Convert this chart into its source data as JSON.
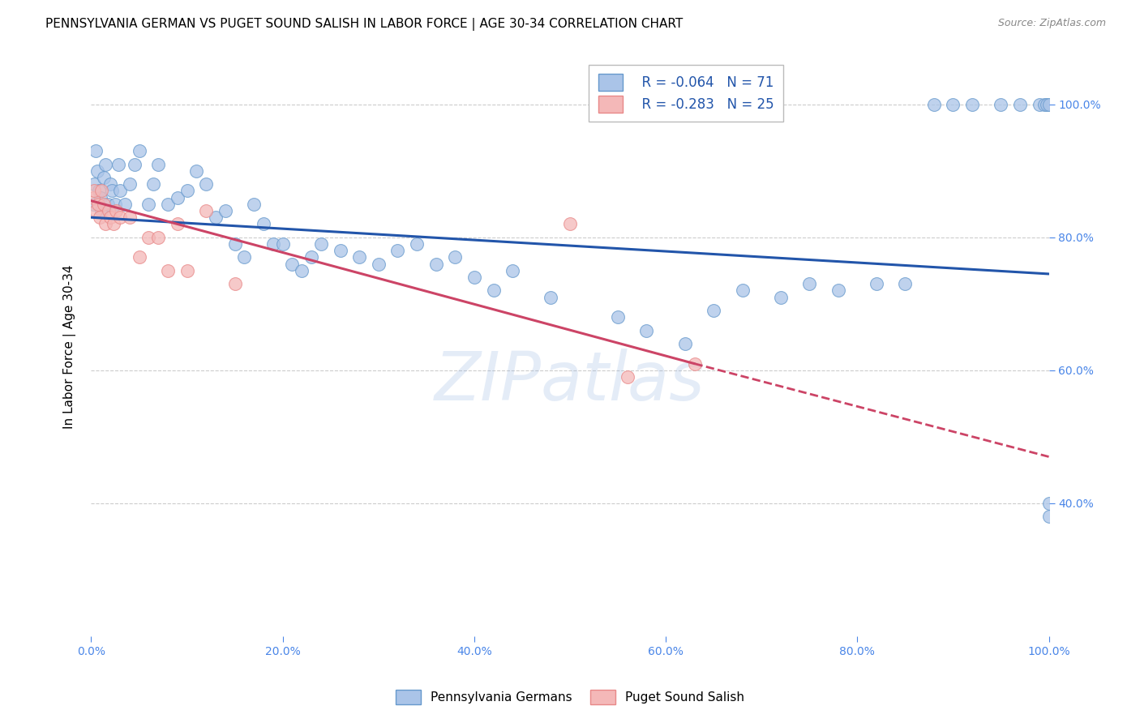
{
  "title": "PENNSYLVANIA GERMAN VS PUGET SOUND SALISH IN LABOR FORCE | AGE 30-34 CORRELATION CHART",
  "source": "Source: ZipAtlas.com",
  "ylabel": "In Labor Force | Age 30-34",
  "x_tick_vals": [
    0,
    20,
    40,
    60,
    80,
    100
  ],
  "y_tick_vals": [
    40,
    60,
    80,
    100
  ],
  "xlim": [
    0,
    100
  ],
  "ylim": [
    20,
    107
  ],
  "legend_blue_label": "Pennsylvania Germans",
  "legend_pink_label": "Puget Sound Salish",
  "r_blue": "-0.064",
  "n_blue": "71",
  "r_pink": "-0.283",
  "n_pink": "25",
  "blue_scatter_x": [
    0.2,
    0.3,
    0.5,
    0.6,
    0.8,
    1.0,
    1.1,
    1.3,
    1.5,
    1.7,
    2.0,
    2.2,
    2.5,
    2.8,
    3.0,
    3.5,
    4.0,
    4.5,
    5.0,
    6.0,
    6.5,
    7.0,
    8.0,
    9.0,
    10.0,
    11.0,
    12.0,
    13.0,
    14.0,
    15.0,
    16.0,
    17.0,
    18.0,
    19.0,
    20.0,
    21.0,
    22.0,
    23.0,
    24.0,
    26.0,
    28.0,
    30.0,
    32.0,
    34.0,
    36.0,
    38.0,
    40.0,
    42.0,
    44.0,
    48.0,
    55.0,
    58.0,
    62.0,
    65.0,
    68.0,
    72.0,
    75.0,
    78.0,
    82.0,
    85.0,
    88.0,
    90.0,
    92.0,
    95.0,
    97.0,
    99.0,
    99.5,
    99.8,
    100.0,
    100.0,
    100.0
  ],
  "blue_scatter_y": [
    85,
    88,
    93,
    90,
    87,
    86,
    84,
    89,
    91,
    85,
    88,
    87,
    85,
    91,
    87,
    85,
    88,
    91,
    93,
    85,
    88,
    91,
    85,
    86,
    87,
    90,
    88,
    83,
    84,
    79,
    77,
    85,
    82,
    79,
    79,
    76,
    75,
    77,
    79,
    78,
    77,
    76,
    78,
    79,
    76,
    77,
    74,
    72,
    75,
    71,
    68,
    66,
    64,
    69,
    72,
    71,
    73,
    72,
    73,
    73,
    100,
    100,
    100,
    100,
    100,
    100,
    100,
    100,
    100,
    40,
    38
  ],
  "pink_scatter_x": [
    0.2,
    0.3,
    0.5,
    0.7,
    0.9,
    1.1,
    1.3,
    1.5,
    1.8,
    2.0,
    2.3,
    2.6,
    3.0,
    4.0,
    5.0,
    6.0,
    7.0,
    8.0,
    9.0,
    10.0,
    12.0,
    15.0,
    50.0,
    56.0,
    63.0
  ],
  "pink_scatter_y": [
    86,
    87,
    84,
    85,
    83,
    87,
    85,
    82,
    84,
    83,
    82,
    84,
    83,
    83,
    77,
    80,
    80,
    75,
    82,
    75,
    84,
    73,
    82,
    59,
    61
  ],
  "blue_line_x0": 0,
  "blue_line_x1": 100,
  "blue_line_y0": 83.0,
  "blue_line_y1": 74.5,
  "pink_line_x0": 0,
  "pink_line_x1": 63,
  "pink_line_y0": 85.5,
  "pink_line_y1": 61.0,
  "pink_dashed_x0": 63,
  "pink_dashed_x1": 100,
  "pink_dashed_y0": 61.0,
  "pink_dashed_y1": 47.0,
  "background_color": "#ffffff",
  "grid_color": "#cccccc",
  "blue_dot_face": "#aac4e8",
  "blue_dot_edge": "#6699cc",
  "pink_dot_face": "#f4b8b8",
  "pink_dot_edge": "#e88888",
  "blue_line_color": "#2255aa",
  "pink_line_color": "#cc4466",
  "watermark": "ZIPatlas",
  "axis_tick_color": "#4a86e8",
  "title_color": "#000000"
}
